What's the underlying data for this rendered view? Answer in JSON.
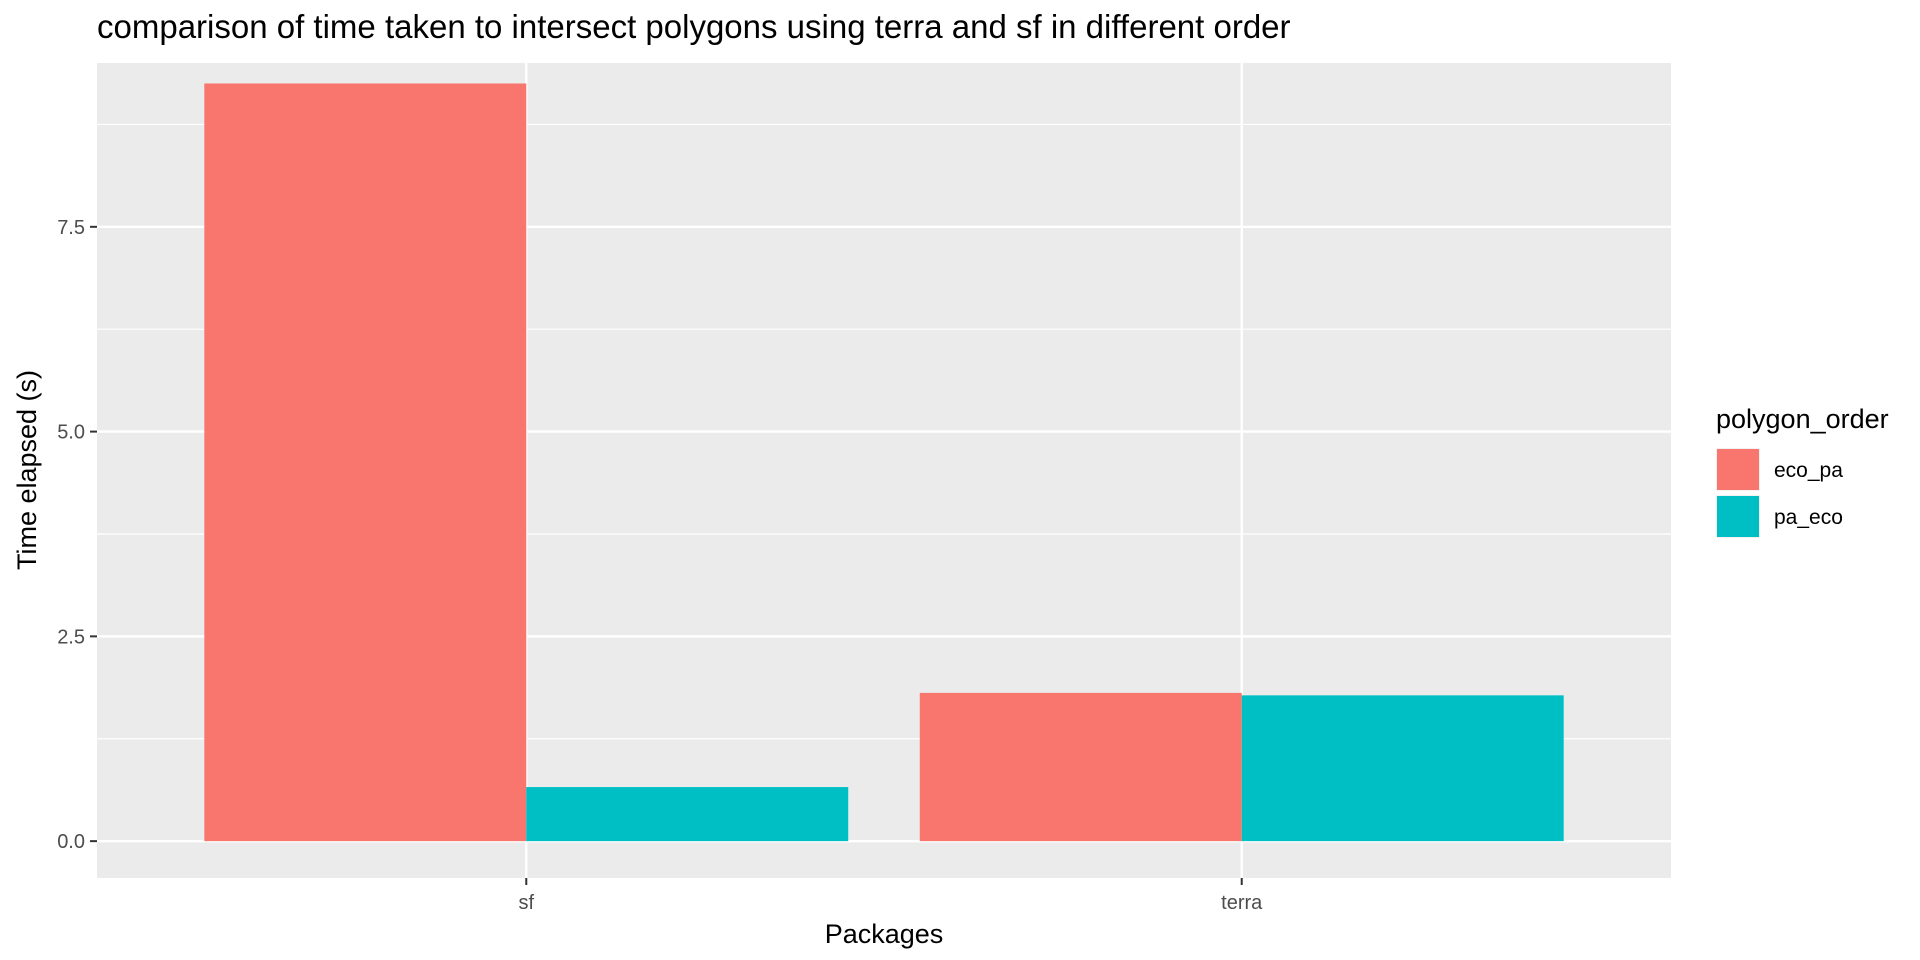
{
  "chart_data": {
    "type": "bar",
    "title": "comparison of time taken to intersect polygons using terra and sf in different order",
    "xlabel": "Packages",
    "ylabel": "Time elapsed (s)",
    "categories": [
      "sf",
      "terra"
    ],
    "series": [
      {
        "name": "eco_pa",
        "color": "#F8766D",
        "values": [
          9.25,
          1.81
        ]
      },
      {
        "name": "pa_eco",
        "color": "#00BFC4",
        "values": [
          0.66,
          1.78
        ]
      }
    ],
    "ylim": [
      -0.45,
      9.5
    ],
    "yticks": [
      0.0,
      2.5,
      5.0,
      7.5
    ],
    "ytick_labels": [
      "0.0",
      "2.5",
      "5.0",
      "7.5"
    ],
    "legend": {
      "title": "polygon_order",
      "position": "right"
    },
    "grid": true,
    "panel_background": "#EBEBEB"
  }
}
